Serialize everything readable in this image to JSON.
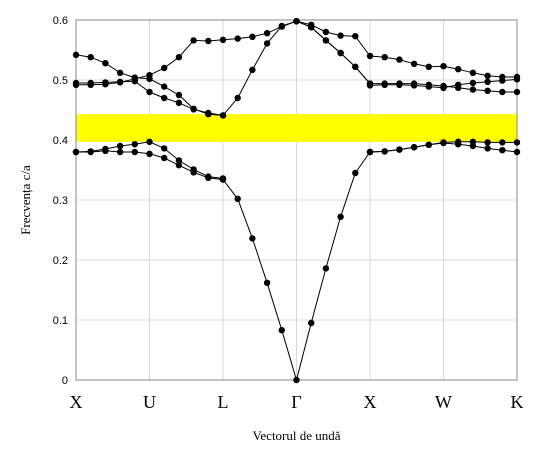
{
  "chart_data": {
    "type": "line",
    "xlabel": "Vectorul de undă",
    "ylabel": "Frecvența c/a",
    "ylim": [
      0,
      0.6
    ],
    "yticks": [
      "0",
      "0.1",
      "0.2",
      "0.3",
      "0.4",
      "0.5",
      "0.6"
    ],
    "xlim": [
      0,
      6
    ],
    "x_symmetry_points": [
      {
        "label": "X",
        "pos": 0
      },
      {
        "label": "U",
        "pos": 1
      },
      {
        "label": "L",
        "pos": 2
      },
      {
        "label": "Γ",
        "pos": 3
      },
      {
        "label": "X",
        "pos": 4
      },
      {
        "label": "W",
        "pos": 5
      },
      {
        "label": "K",
        "pos": 6
      }
    ],
    "grid": true,
    "band_gap": {
      "from": 0.397,
      "to": 0.443,
      "color": "#ffff00"
    },
    "series": [
      {
        "points": [
          [
            0,
            0.38
          ],
          [
            0.2,
            0.38
          ],
          [
            0.4,
            0.382
          ],
          [
            0.6,
            0.38
          ],
          [
            0.8,
            0.38
          ],
          [
            1.0,
            0.377
          ],
          [
            1.2,
            0.37
          ],
          [
            1.4,
            0.358
          ],
          [
            1.6,
            0.346
          ],
          [
            1.8,
            0.337
          ],
          [
            2.0,
            0.334
          ],
          [
            2.2,
            0.302
          ],
          [
            2.4,
            0.236
          ],
          [
            2.6,
            0.162
          ],
          [
            2.8,
            0.083
          ],
          [
            3.0,
            0.0
          ],
          [
            3.2,
            0.095
          ],
          [
            3.4,
            0.186
          ],
          [
            3.6,
            0.272
          ],
          [
            3.8,
            0.345
          ],
          [
            4.0,
            0.38
          ]
        ]
      },
      {
        "points": [
          [
            0,
            0.38
          ],
          [
            0.2,
            0.381
          ],
          [
            0.4,
            0.385
          ],
          [
            0.6,
            0.39
          ],
          [
            0.8,
            0.393
          ],
          [
            1.0,
            0.397
          ],
          [
            1.2,
            0.386
          ],
          [
            1.4,
            0.366
          ],
          [
            1.6,
            0.351
          ],
          [
            1.8,
            0.339
          ],
          [
            2.0,
            0.336
          ]
        ]
      },
      {
        "points": [
          [
            0,
            0.495
          ],
          [
            0.2,
            0.495
          ],
          [
            0.4,
            0.496
          ],
          [
            0.6,
            0.497
          ],
          [
            0.8,
            0.498
          ],
          [
            1.0,
            0.48
          ],
          [
            1.2,
            0.47
          ],
          [
            1.4,
            0.462
          ],
          [
            1.6,
            0.451
          ],
          [
            1.8,
            0.445
          ],
          [
            2.0,
            0.441
          ]
        ]
      },
      {
        "points": [
          [
            0,
            0.492
          ],
          [
            0.2,
            0.492
          ],
          [
            0.4,
            0.493
          ],
          [
            0.6,
            0.496
          ],
          [
            0.8,
            0.502
          ],
          [
            1.0,
            0.508
          ],
          [
            1.2,
            0.52
          ],
          [
            1.4,
            0.538
          ],
          [
            1.6,
            0.566
          ],
          [
            1.8,
            0.565
          ],
          [
            2.0,
            0.567
          ],
          [
            2.2,
            0.569
          ],
          [
            2.4,
            0.572
          ],
          [
            2.6,
            0.578
          ],
          [
            2.8,
            0.589
          ],
          [
            3.0,
            0.598
          ],
          [
            3.2,
            0.592
          ],
          [
            3.4,
            0.58
          ],
          [
            3.6,
            0.574
          ],
          [
            3.8,
            0.573
          ],
          [
            4.0,
            0.54
          ],
          [
            4.2,
            0.538
          ],
          [
            4.4,
            0.534
          ],
          [
            4.6,
            0.527
          ],
          [
            4.8,
            0.522
          ],
          [
            5.0,
            0.523
          ],
          [
            5.2,
            0.518
          ],
          [
            5.4,
            0.512
          ],
          [
            5.6,
            0.507
          ],
          [
            5.8,
            0.505
          ],
          [
            6.0,
            0.505
          ]
        ]
      },
      {
        "points": [
          [
            0,
            0.542
          ],
          [
            0.2,
            0.538
          ],
          [
            0.4,
            0.528
          ],
          [
            0.6,
            0.512
          ],
          [
            0.8,
            0.504
          ],
          [
            1.0,
            0.502
          ],
          [
            1.2,
            0.489
          ],
          [
            1.4,
            0.475
          ],
          [
            1.6,
            0.452
          ],
          [
            1.8,
            0.443
          ],
          [
            2.0,
            0.441
          ],
          [
            2.2,
            0.47
          ],
          [
            2.4,
            0.517
          ],
          [
            2.6,
            0.561
          ],
          [
            2.8,
            0.59
          ],
          [
            3.0,
            0.598
          ],
          [
            3.2,
            0.588
          ],
          [
            3.4,
            0.566
          ],
          [
            3.6,
            0.545
          ],
          [
            3.8,
            0.522
          ],
          [
            4.0,
            0.494
          ]
        ]
      },
      {
        "points": [
          [
            3.0,
            0.598
          ],
          [
            3.2,
            0.588
          ],
          [
            3.4,
            0.566
          ],
          [
            3.6,
            0.545
          ],
          [
            3.8,
            0.522
          ],
          [
            4.0,
            0.494
          ],
          [
            4.2,
            0.494
          ],
          [
            4.4,
            0.494
          ],
          [
            4.6,
            0.494
          ],
          [
            4.8,
            0.492
          ],
          [
            5.0,
            0.49
          ],
          [
            5.2,
            0.487
          ],
          [
            5.4,
            0.484
          ],
          [
            5.6,
            0.482
          ],
          [
            5.8,
            0.48
          ],
          [
            6.0,
            0.48
          ]
        ]
      },
      {
        "points": [
          [
            4.0,
            0.491
          ],
          [
            4.2,
            0.492
          ],
          [
            4.4,
            0.492
          ],
          [
            4.6,
            0.491
          ],
          [
            4.8,
            0.489
          ],
          [
            5.0,
            0.487
          ],
          [
            5.2,
            0.492
          ],
          [
            5.4,
            0.495
          ],
          [
            5.6,
            0.497
          ],
          [
            5.8,
            0.499
          ],
          [
            6.0,
            0.501
          ]
        ]
      },
      {
        "points": [
          [
            4.0,
            0.38
          ],
          [
            4.2,
            0.381
          ],
          [
            4.4,
            0.384
          ],
          [
            4.6,
            0.388
          ],
          [
            4.8,
            0.392
          ],
          [
            5.0,
            0.395
          ],
          [
            5.2,
            0.393
          ],
          [
            5.4,
            0.39
          ],
          [
            5.6,
            0.386
          ],
          [
            5.8,
            0.383
          ],
          [
            6.0,
            0.38
          ]
        ]
      },
      {
        "points": [
          [
            4.0,
            0.38
          ],
          [
            4.2,
            0.381
          ],
          [
            4.4,
            0.384
          ],
          [
            4.6,
            0.388
          ],
          [
            4.8,
            0.392
          ],
          [
            5.0,
            0.396
          ],
          [
            5.2,
            0.397
          ],
          [
            5.4,
            0.397
          ],
          [
            5.6,
            0.396
          ],
          [
            5.8,
            0.396
          ],
          [
            6.0,
            0.396
          ]
        ]
      }
    ]
  }
}
